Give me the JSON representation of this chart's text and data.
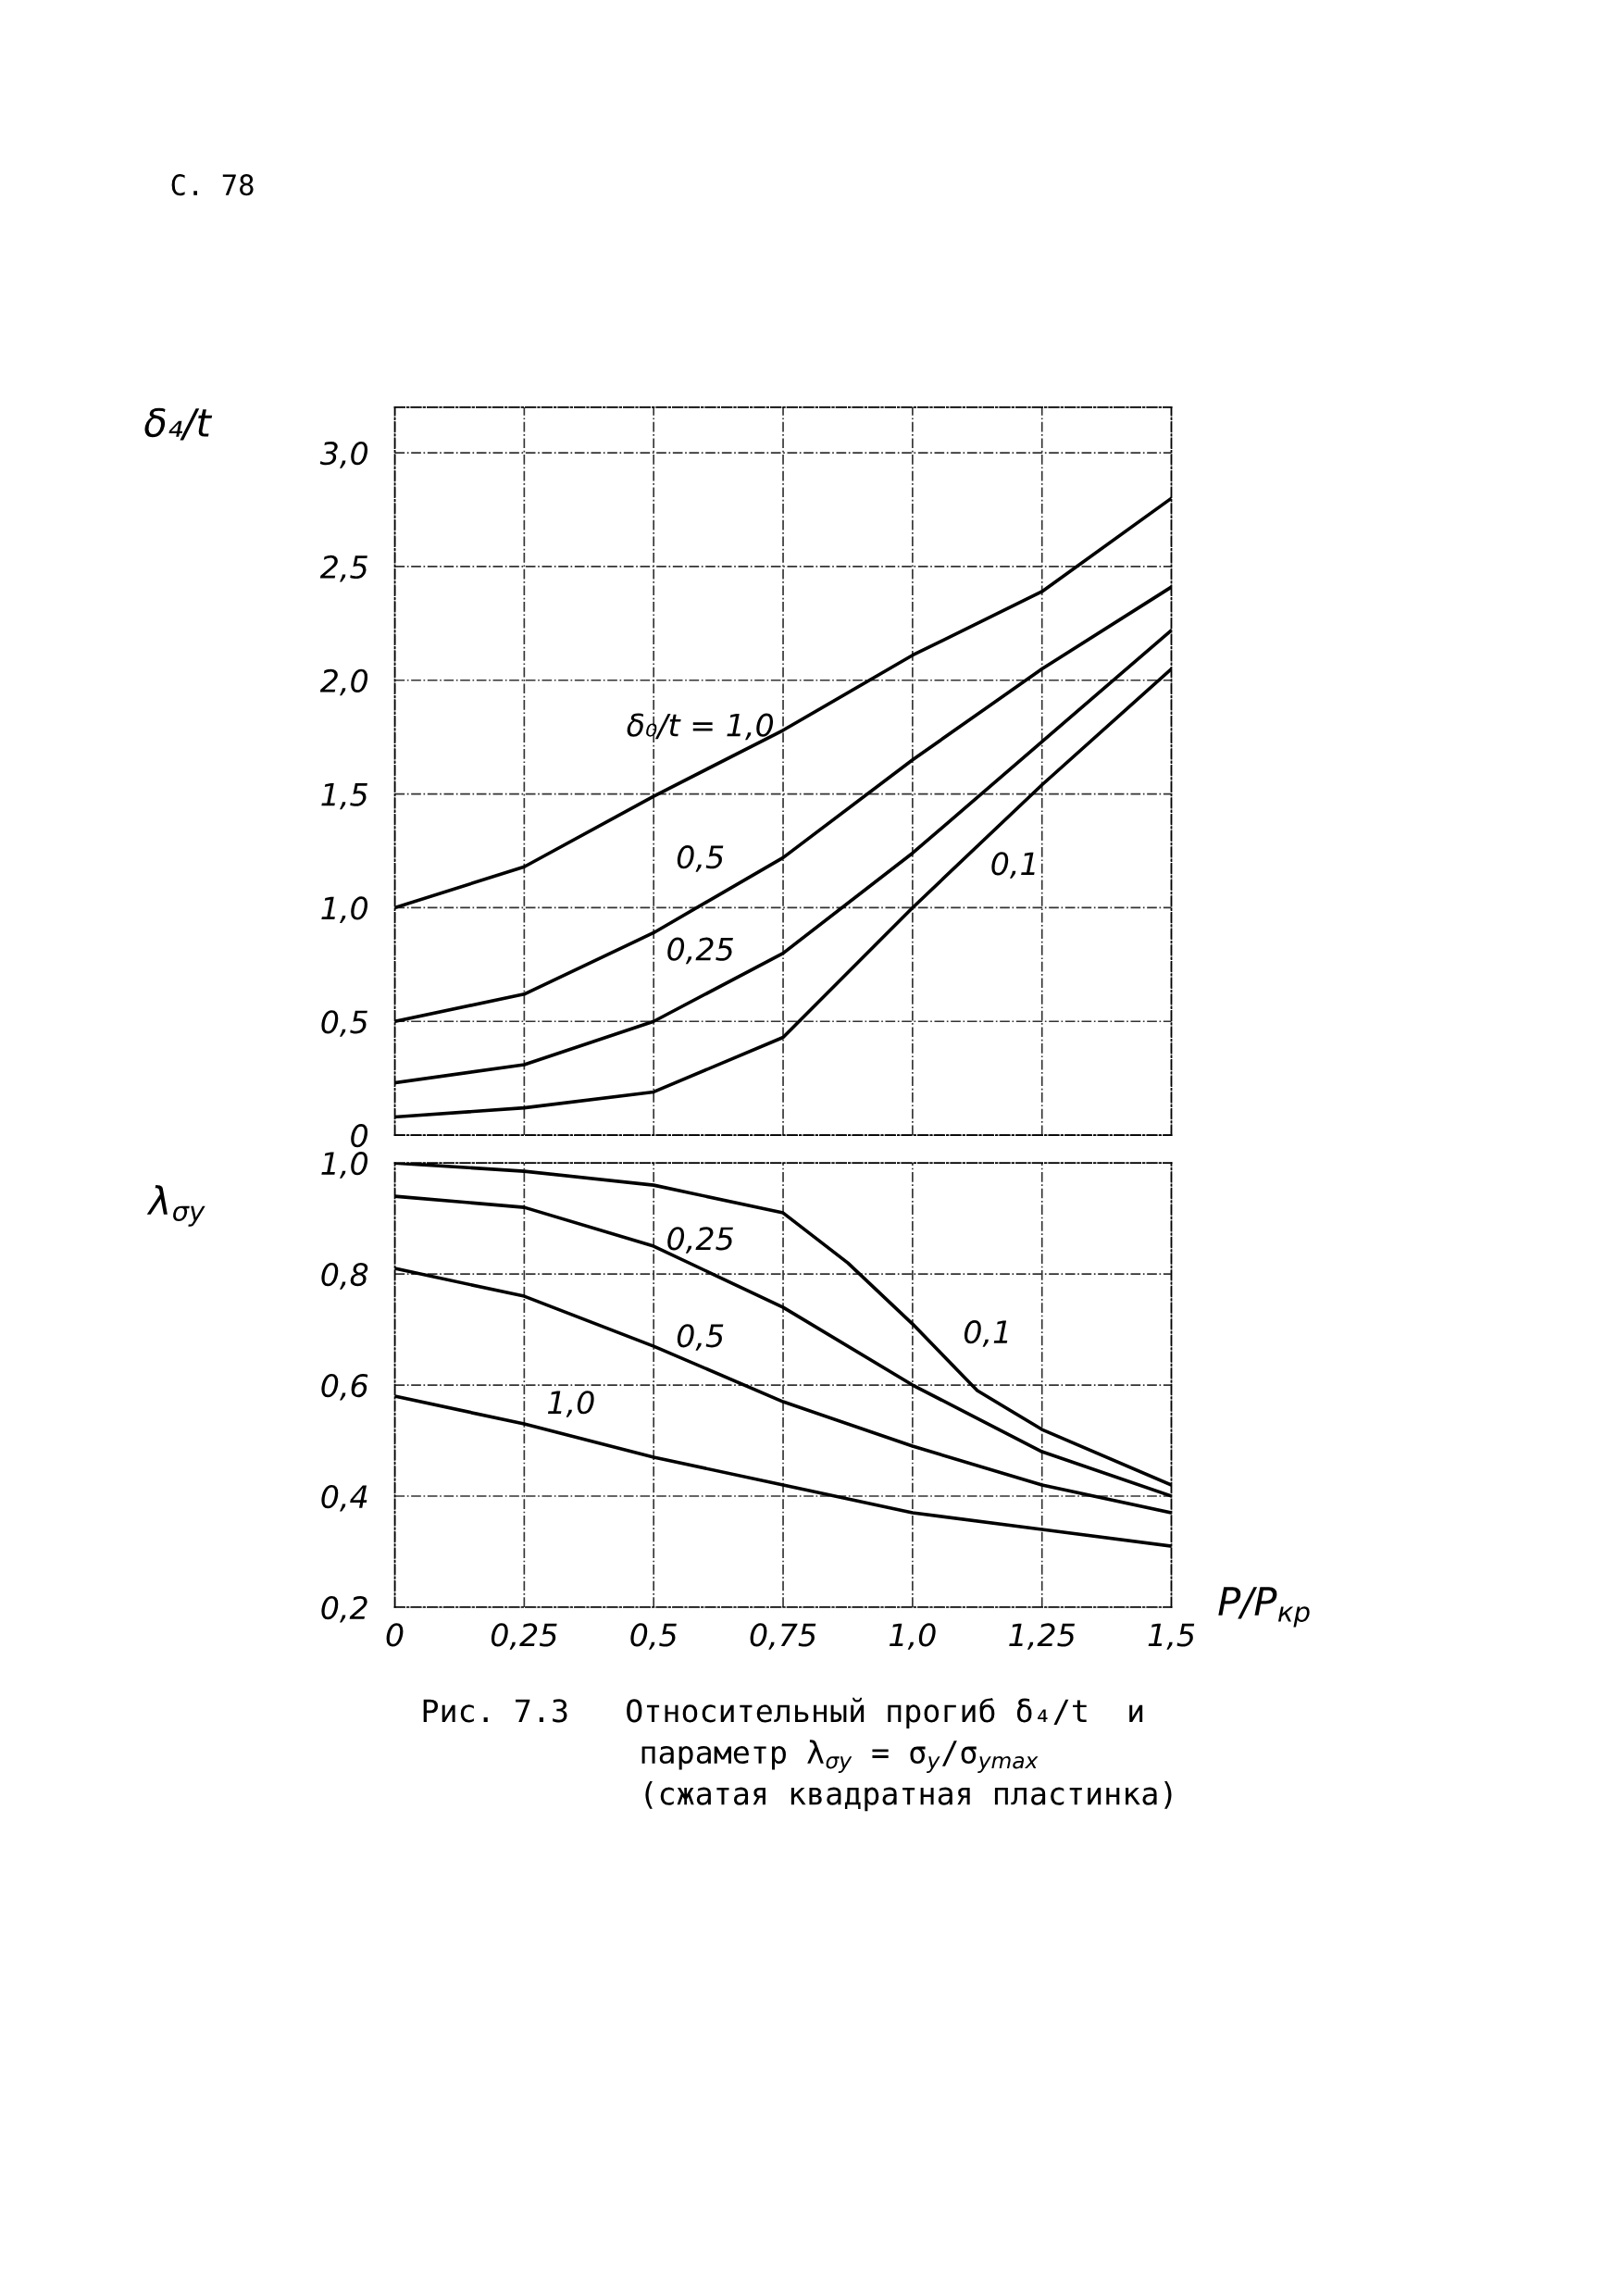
{
  "chart_data": [
    {
      "type": "line",
      "ylabel": "δ₄/t",
      "x": [
        0,
        0.25,
        0.5,
        0.75,
        1.0,
        1.25,
        1.5
      ],
      "series": [
        {
          "name": "δ₀/t = 1,0",
          "color": "#000000",
          "values": [
            1.0,
            1.18,
            1.49,
            1.78,
            2.11,
            2.39,
            2.8
          ]
        },
        {
          "name": "0,5",
          "color": "#000000",
          "values": [
            0.5,
            0.62,
            0.89,
            1.22,
            1.65,
            2.05,
            2.41
          ]
        },
        {
          "name": "0,25",
          "color": "#000000",
          "values": [
            0.23,
            0.31,
            0.5,
            0.8,
            1.24,
            1.73,
            2.22
          ]
        },
        {
          "name": "0,1",
          "color": "#000000",
          "values": [
            0.08,
            0.12,
            0.19,
            0.43,
            1.0,
            1.54,
            2.05
          ]
        }
      ],
      "xlim": [
        0,
        1.5
      ],
      "ylim": [
        0,
        3.2
      ],
      "xticks": [
        0,
        0.25,
        0.5,
        0.75,
        1.0,
        1.25,
        1.5
      ],
      "yticks": [
        {
          "value": 0,
          "label": "0"
        },
        {
          "value": 0.5,
          "label": "0,5"
        },
        {
          "value": 1.0,
          "label": "1,0"
        },
        {
          "value": 1.5,
          "label": "1,5"
        },
        {
          "value": 2.0,
          "label": "2,0"
        },
        {
          "value": 2.5,
          "label": "2,5"
        },
        {
          "value": 3.0,
          "label": "3,0"
        }
      ],
      "tick_labels": "y",
      "grid": true,
      "line_style": "solid",
      "annotations": [
        "С. 78"
      ]
    },
    {
      "type": "line",
      "ylabel": "λ$_{σy}$",
      "xlabel": "P/P$_{кр}$",
      "x": [
        0,
        0.25,
        0.5,
        0.75,
        1.0,
        1.25,
        1.5
      ],
      "series": [
        {
          "name": "0,1",
          "color": "#000000",
          "x": [
            0,
            0.25,
            0.5,
            0.75,
            0.875,
            1.0,
            1.125,
            1.25,
            1.5
          ],
          "values": [
            1.0,
            0.985,
            0.96,
            0.91,
            0.82,
            0.71,
            0.59,
            0.52,
            0.42
          ]
        },
        {
          "name": "0,25",
          "color": "#000000",
          "values": [
            0.94,
            0.92,
            0.85,
            0.74,
            0.6,
            0.48,
            0.4
          ]
        },
        {
          "name": "0,5",
          "color": "#000000",
          "values": [
            0.81,
            0.76,
            0.67,
            0.57,
            0.49,
            0.42,
            0.37
          ]
        },
        {
          "name": "1,0",
          "color": "#000000",
          "values": [
            0.58,
            0.53,
            0.47,
            0.42,
            0.37,
            0.34,
            0.31
          ]
        }
      ],
      "xlim": [
        0,
        1.5
      ],
      "ylim": [
        0.2,
        1.0
      ],
      "xticks": [
        {
          "value": 0,
          "label": "0"
        },
        {
          "value": 0.25,
          "label": "0,25"
        },
        {
          "value": 0.5,
          "label": "0,5"
        },
        {
          "value": 0.75,
          "label": "0,75"
        },
        {
          "value": 1.0,
          "label": "1,0"
        },
        {
          "value": 1.25,
          "label": "1,25"
        },
        {
          "value": 1.5,
          "label": "1,5"
        }
      ],
      "yticks": [
        {
          "value": 0.2,
          "label": "0,2"
        },
        {
          "value": 0.4,
          "label": "0,4"
        },
        {
          "value": 0.6,
          "label": "0,6"
        },
        {
          "value": 0.8,
          "label": "0,8"
        },
        {
          "value": 1.0,
          "label": "1,0"
        }
      ],
      "grid": true,
      "line_style": "solid",
      "annotations": [
        "Рис. 7.3   Относительный прогиб δ₄/t  и",
        "параметр λ$_{σy}$ = σ$_{y}$/σ$_{ymax}$",
        "(сжатая квадратная пластинка)"
      ]
    }
  ]
}
